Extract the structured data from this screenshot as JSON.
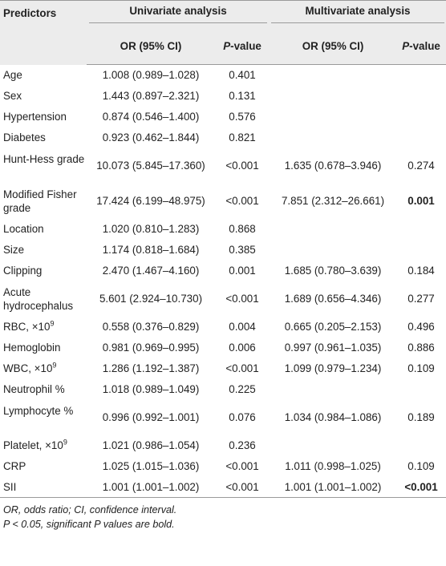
{
  "header": {
    "predictors": "Predictors",
    "univariate": "Univariate analysis",
    "multivariate": "Multivariate analysis",
    "or_ci": "OR (95% CI)",
    "p_letter": "P",
    "p_rest": "-value"
  },
  "rows": [
    {
      "label": "Age",
      "uni_or": "1.008 (0.989–1.028)",
      "uni_p": "0.401",
      "multi_or": "",
      "multi_p": ""
    },
    {
      "label": "Sex",
      "uni_or": "1.443 (0.897–2.321)",
      "uni_p": "0.131",
      "multi_or": "",
      "multi_p": ""
    },
    {
      "label": "Hypertension",
      "uni_or": "0.874 (0.546–1.400)",
      "uni_p": "0.576",
      "multi_or": "",
      "multi_p": ""
    },
    {
      "label": "Diabetes",
      "uni_or": "0.923 (0.462–1.844)",
      "uni_p": "0.821",
      "multi_or": "",
      "multi_p": ""
    },
    {
      "label": "Hunt-Hess grade",
      "uni_or": "10.073 (5.845–17.360)",
      "uni_p": "<0.001",
      "multi_or": "1.635 (0.678–3.946)",
      "multi_p": "0.274"
    },
    {
      "label": "Modified Fisher grade",
      "uni_or": "17.424 (6.199–48.975)",
      "uni_p": "<0.001",
      "multi_or": "7.851 (2.312–26.661)",
      "multi_p": "0.001"
    },
    {
      "label": "Location",
      "uni_or": "1.020 (0.810–1.283)",
      "uni_p": "0.868",
      "multi_or": "",
      "multi_p": ""
    },
    {
      "label": "Size",
      "uni_or": "1.174 (0.818–1.684)",
      "uni_p": "0.385",
      "multi_or": "",
      "multi_p": ""
    },
    {
      "label": "Clipping",
      "uni_or": "2.470 (1.467–4.160)",
      "uni_p": "0.001",
      "multi_or": "1.685 (0.780–3.639)",
      "multi_p": "0.184"
    },
    {
      "label": "Acute hydrocephalus",
      "uni_or": "5.601 (2.924–10.730)",
      "uni_p": "<0.001",
      "multi_or": "1.689 (0.656–4.346)",
      "multi_p": "0.277"
    },
    {
      "label": "RBC, ×10",
      "sup": "9",
      "uni_or": "0.558 (0.376–0.829)",
      "uni_p": "0.004",
      "multi_or": "0.665 (0.205–2.153)",
      "multi_p": "0.496"
    },
    {
      "label": "Hemoglobin",
      "uni_or": "0.981 (0.969–0.995)",
      "uni_p": "0.006",
      "multi_or": "0.997 (0.961–1.035)",
      "multi_p": "0.886"
    },
    {
      "label": "WBC, ×10",
      "sup": "9",
      "uni_or": "1.286 (1.192–1.387)",
      "uni_p": "<0.001",
      "multi_or": "1.099 (0.979–1.234)",
      "multi_p": "0.109"
    },
    {
      "label": "Neutrophil %",
      "uni_or": "1.018 (0.989–1.049)",
      "uni_p": "0.225",
      "multi_or": "",
      "multi_p": ""
    },
    {
      "label": "Lymphocyte %",
      "uni_or": "0.996 (0.992–1.001)",
      "uni_p": "0.076",
      "multi_or": "1.034 (0.984–1.086)",
      "multi_p": "0.189"
    },
    {
      "label": "Platelet, ×10",
      "sup": "9",
      "uni_or": "1.021 (0.986–1.054)",
      "uni_p": "0.236",
      "multi_or": "",
      "multi_p": ""
    },
    {
      "label": "CRP",
      "uni_or": "1.025 (1.015–1.036)",
      "uni_p": "<0.001",
      "multi_or": "1.011 (0.998–1.025)",
      "multi_p": "0.109"
    },
    {
      "label": "SII",
      "uni_or": "1.001 (1.001–1.002)",
      "uni_p": "<0.001",
      "multi_or": "1.001 (1.001–1.002)",
      "multi_p": "<0.001"
    }
  ],
  "bold_multi_p": [
    "0.001",
    "<0.001"
  ],
  "footnotes": [
    "OR, odds ratio; CI, confidence interval.",
    "P < 0.05, significant P values are bold."
  ]
}
